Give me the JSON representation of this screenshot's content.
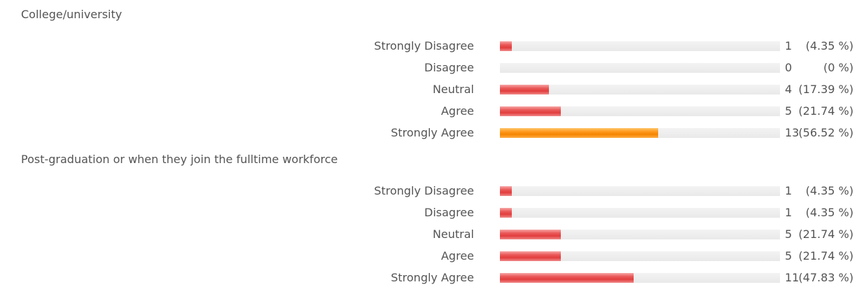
{
  "chart_data": [
    {
      "type": "bar",
      "title": "College/university",
      "categories": [
        "Strongly Disagree",
        "Disagree",
        "Neutral",
        "Agree",
        "Strongly Agree"
      ],
      "values": [
        1,
        0,
        4,
        5,
        13
      ],
      "percent_labels": [
        "(4.35 %)",
        "(0 %)",
        "(17.39 %)",
        "(21.74 %)",
        "(56.52 %)"
      ],
      "fractions": [
        0.0435,
        0,
        0.1739,
        0.2174,
        0.5652
      ],
      "highlight_index": 4
    },
    {
      "type": "bar",
      "title": "Post-graduation or when they join the fulltime workforce",
      "categories": [
        "Strongly Disagree",
        "Disagree",
        "Neutral",
        "Agree",
        "Strongly Agree"
      ],
      "values": [
        1,
        1,
        5,
        5,
        11
      ],
      "percent_labels": [
        "(4.35 %)",
        "(4.35 %)",
        "(21.74 %)",
        "(21.74 %)",
        "(47.83 %)"
      ],
      "fractions": [
        0.0435,
        0.0435,
        0.2174,
        0.2174,
        0.4783
      ],
      "highlight_index": -1
    }
  ],
  "colors": {
    "bar_default": "#e23d3d",
    "bar_highlight": "#f58400",
    "track": "#ececec",
    "text": "#555555"
  }
}
